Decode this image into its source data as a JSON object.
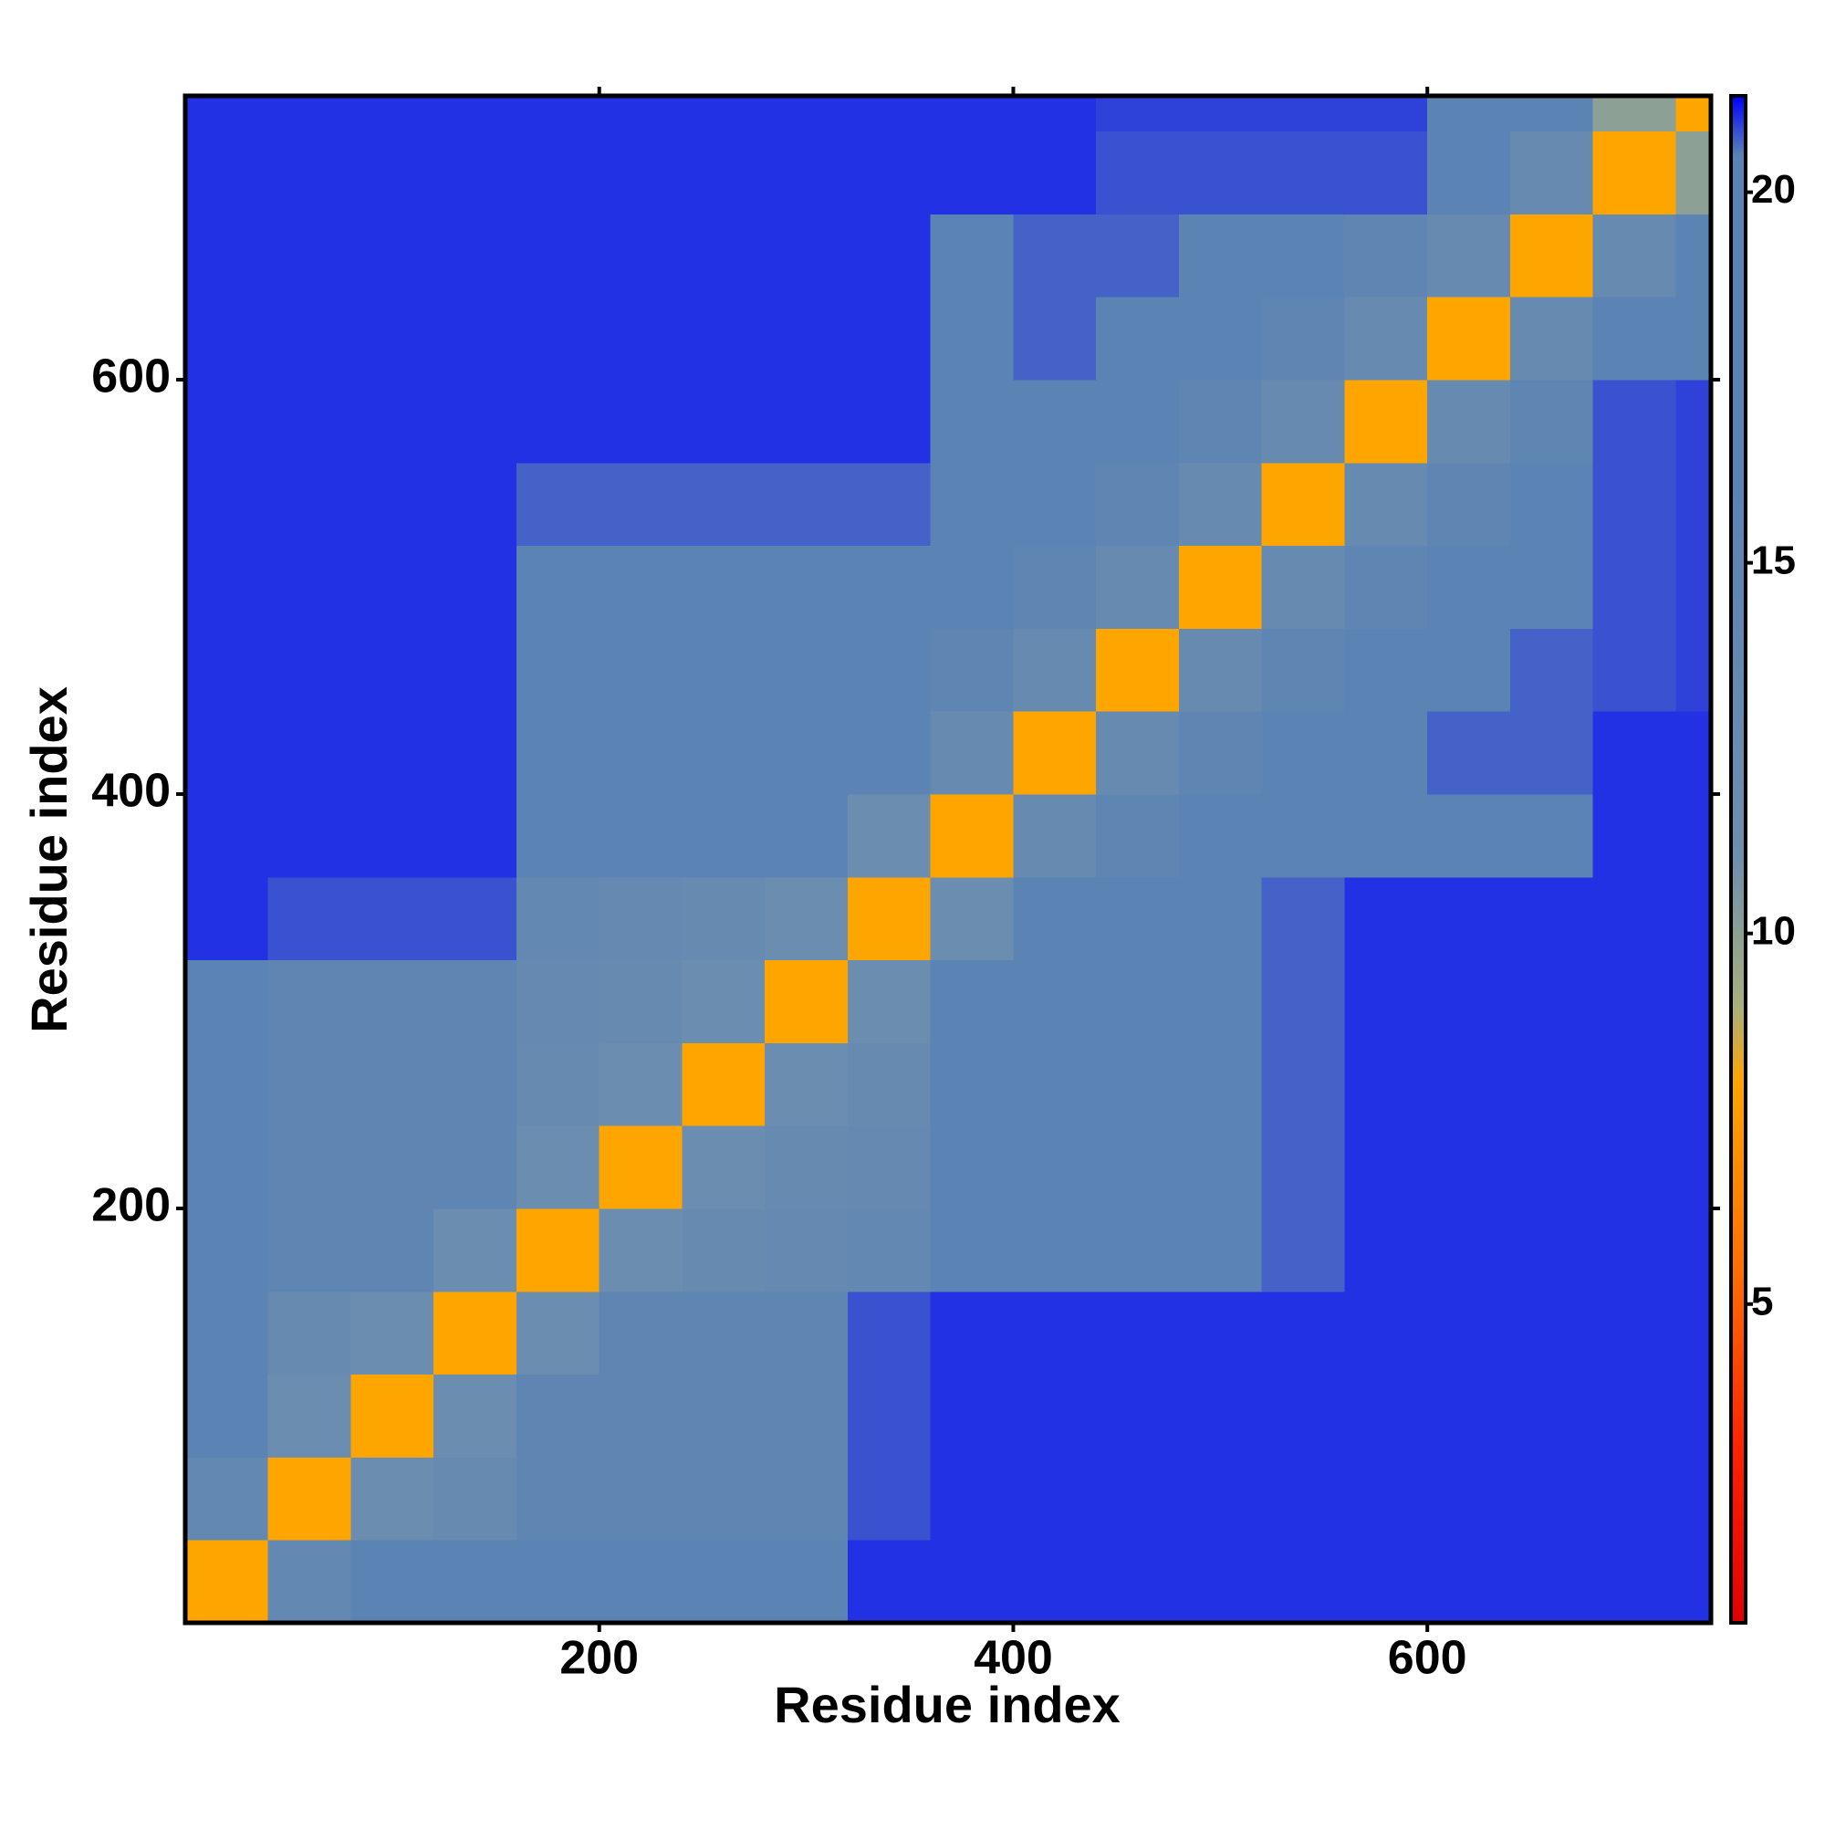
{
  "chart_data": {
    "type": "heatmap",
    "xlabel": "Residue index",
    "ylabel": "Residue index",
    "xlim": [
      0,
      737
    ],
    "ylim": [
      0,
      737
    ],
    "xticks": [
      200,
      400,
      600
    ],
    "yticks": [
      200,
      400,
      600
    ],
    "xbins": [
      0,
      40,
      80,
      120,
      160,
      200,
      240,
      280,
      320,
      360,
      400,
      440,
      480,
      520,
      560,
      600,
      640,
      680,
      720,
      737
    ],
    "ybins": [
      0,
      40,
      80,
      120,
      160,
      200,
      240,
      280,
      320,
      360,
      400,
      440,
      480,
      520,
      560,
      600,
      640,
      680,
      720,
      737
    ],
    "clim": [
      0.7,
      21.3
    ],
    "cticks": [
      5,
      10,
      15,
      20
    ],
    "colorscale": [
      {
        "value": 0.7,
        "color": "#e00000"
      },
      {
        "value": 3,
        "color": "#ff2000"
      },
      {
        "value": 5.5,
        "color": "#ff7000"
      },
      {
        "value": 8,
        "color": "#ffa500"
      },
      {
        "value": 9,
        "color": "#a9b07c"
      },
      {
        "value": 11,
        "color": "#6f8fae"
      },
      {
        "value": 16,
        "color": "#5b83b4"
      },
      {
        "value": 20.5,
        "color": "#5b83b4"
      },
      {
        "value": 21.3,
        "color": "#0000ff"
      }
    ],
    "z": [
      [
        8,
        14,
        16,
        17,
        20.5,
        20.5,
        20.5,
        20.5,
        21,
        21,
        21,
        21,
        21,
        21,
        21,
        21,
        21,
        21,
        21
      ],
      [
        14,
        8,
        12,
        13,
        15,
        15,
        15,
        15,
        20.8,
        21,
        21,
        21,
        21,
        21,
        21,
        21,
        21,
        21,
        21
      ],
      [
        16,
        12,
        8,
        12,
        15,
        15,
        15,
        15,
        20.8,
        21,
        21,
        21,
        21,
        21,
        21,
        21,
        21,
        21,
        21
      ],
      [
        17,
        13,
        12,
        8,
        12,
        15,
        15,
        15,
        20.8,
        21,
        21,
        21,
        21,
        21,
        21,
        21,
        21,
        21,
        21
      ],
      [
        20.5,
        15,
        15,
        12,
        8,
        12,
        13,
        13.5,
        14,
        16,
        19.5,
        19.5,
        19.5,
        20.7,
        21,
        21,
        21,
        21,
        21
      ],
      [
        20.5,
        15,
        15,
        15,
        12,
        8,
        12,
        13,
        13.5,
        16,
        19.5,
        19.5,
        19.5,
        20.7,
        21,
        21,
        21,
        21,
        21
      ],
      [
        20.5,
        15,
        15,
        15,
        13,
        12,
        8,
        12,
        13,
        16,
        19.5,
        19.5,
        19.5,
        20.7,
        21,
        21,
        21,
        21,
        21
      ],
      [
        20.5,
        15,
        15,
        15,
        13.5,
        13,
        12,
        8,
        12,
        16,
        19.5,
        19.5,
        19.5,
        20.7,
        21,
        21,
        21,
        21,
        21
      ],
      [
        21,
        20.8,
        20.8,
        20.8,
        14,
        13.5,
        13,
        12,
        8,
        12,
        19.5,
        19.5,
        19.5,
        20.7,
        21,
        21,
        21,
        21,
        21
      ],
      [
        21,
        21,
        21,
        21,
        16,
        16,
        16,
        16,
        12,
        8,
        13,
        15,
        17,
        19,
        20.5,
        20.5,
        20.5,
        21,
        21
      ],
      [
        21,
        21,
        21,
        21,
        19.5,
        19.5,
        19.5,
        19.5,
        19.5,
        13,
        8,
        13,
        15,
        17,
        19,
        20.7,
        20.7,
        21,
        21
      ],
      [
        21,
        21,
        21,
        21,
        19.5,
        19.5,
        19.5,
        19.5,
        19.5,
        15,
        13,
        8,
        13,
        15,
        17,
        19,
        20.7,
        20.8,
        20.9
      ],
      [
        21,
        21,
        21,
        21,
        19.5,
        19.5,
        19.5,
        19.5,
        19.5,
        17,
        15,
        13,
        8,
        13,
        15,
        17,
        19,
        20.8,
        20.9
      ],
      [
        21,
        21,
        21,
        21,
        20.7,
        20.7,
        20.7,
        20.7,
        20.7,
        19,
        17,
        15,
        13,
        8,
        13,
        15,
        17,
        20.8,
        20.9
      ],
      [
        21,
        21,
        21,
        21,
        21,
        21,
        21,
        21,
        21,
        20.5,
        19,
        17,
        15,
        13,
        8,
        13,
        15,
        20.8,
        20.9
      ],
      [
        21,
        21,
        21,
        21,
        21,
        21,
        21,
        21,
        21,
        20.5,
        20.7,
        19,
        17,
        15,
        13,
        8,
        13,
        17,
        20.5
      ],
      [
        21,
        21,
        21,
        21,
        21,
        21,
        21,
        21,
        21,
        20.5,
        20.7,
        20.7,
        19,
        17,
        15,
        13,
        8,
        13,
        18
      ],
      [
        21,
        21,
        21,
        21,
        21,
        21,
        21,
        21,
        21,
        21,
        21,
        20.8,
        20.8,
        20.8,
        20.8,
        17,
        13,
        8,
        10
      ],
      [
        21,
        21,
        21,
        21,
        21,
        21,
        21,
        21,
        21,
        21,
        21,
        20.9,
        20.9,
        20.9,
        20.9,
        20.5,
        18,
        10,
        8
      ]
    ]
  }
}
